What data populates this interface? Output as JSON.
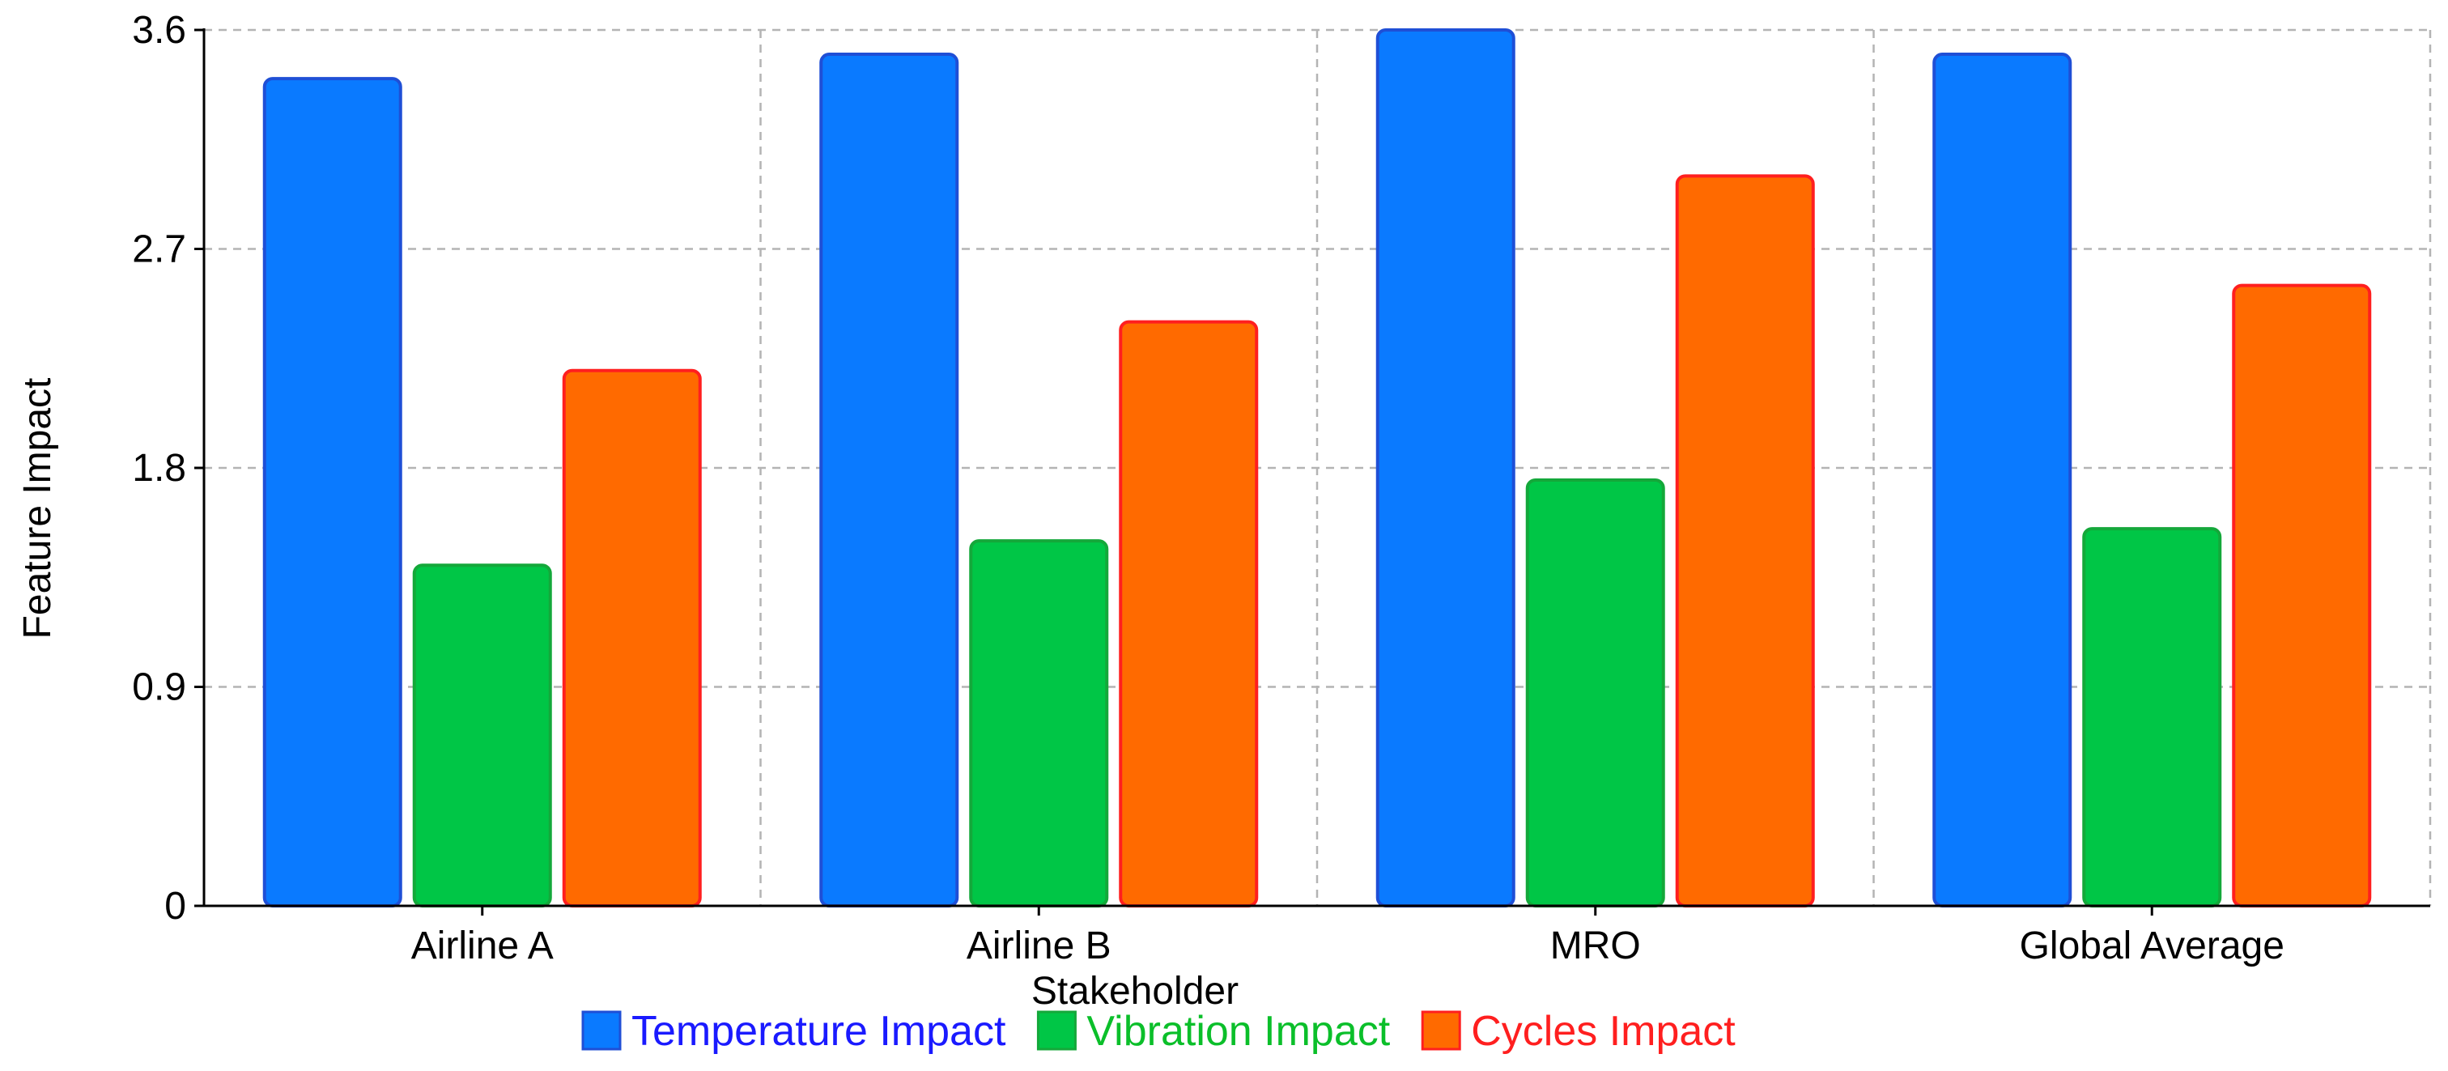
{
  "chart_data": {
    "type": "bar",
    "title": "",
    "xlabel": "Stakeholder",
    "ylabel": "Feature Impact",
    "categories": [
      "Airline A",
      "Airline B",
      "MRO",
      "Global Average"
    ],
    "ylim": [
      0,
      3.6
    ],
    "yticks": [
      "0",
      "0.9",
      "1.8",
      "2.7",
      "3.6"
    ],
    "grid": true,
    "legend_position": "bottom",
    "series": [
      {
        "name": "Temperature Impact",
        "values": [
          3.4,
          3.5,
          3.6,
          3.5
        ],
        "color": "#0a7aff",
        "stroke": "#1f4fd6",
        "legend_text_color": "#1a1aff"
      },
      {
        "name": "Vibration Impact",
        "values": [
          1.4,
          1.5,
          1.75,
          1.55
        ],
        "color": "#00c646",
        "stroke": "#14a83a",
        "legend_text_color": "#0bbf2a"
      },
      {
        "name": "Cycles Impact",
        "values": [
          2.2,
          2.4,
          3.0,
          2.55
        ],
        "color": "#ff6a00",
        "stroke": "#ff1f1f",
        "legend_text_color": "#ff1f1f"
      }
    ]
  }
}
